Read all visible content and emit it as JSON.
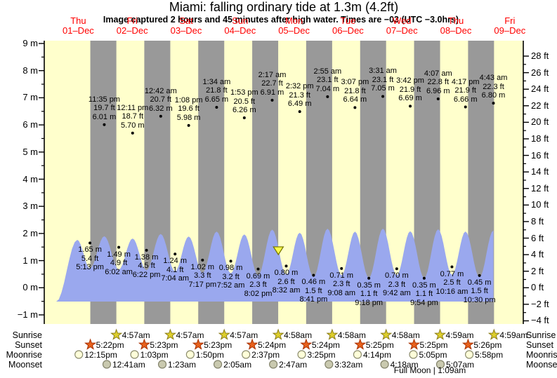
{
  "chart_data": {
    "type": "area",
    "title": "Miami: falling  ordinary tide at 1.3m (4.2ft)",
    "subtitle": "Image captured 2 hours and 45 minutes after high water. Times are −03 (UTC −3.0hrs)",
    "x_axis": {
      "days": [
        {
          "weekday": "Thu",
          "date": "01–Dec"
        },
        {
          "weekday": "Fri",
          "date": "02–Dec"
        },
        {
          "weekday": "Sat",
          "date": "03–Dec"
        },
        {
          "weekday": "Sun",
          "date": "04–Dec"
        },
        {
          "weekday": "Mon",
          "date": "05–Dec"
        },
        {
          "weekday": "Tue",
          "date": "06–Dec"
        },
        {
          "weekday": "Wed",
          "date": "07–Dec"
        },
        {
          "weekday": "Thu",
          "date": "08–Dec"
        },
        {
          "weekday": "Fri",
          "date": "09–Dec"
        }
      ]
    },
    "y_axis_left": {
      "unit": "m",
      "min": -1,
      "max": 9,
      "ticks": [
        {
          "v": 9,
          "label": "9 m"
        },
        {
          "v": 8,
          "label": "8 m"
        },
        {
          "v": 7,
          "label": "7 m"
        },
        {
          "v": 6,
          "label": "6 m"
        },
        {
          "v": 5,
          "label": "5 m"
        },
        {
          "v": 4,
          "label": "4 m"
        },
        {
          "v": 3,
          "label": "3 m"
        },
        {
          "v": 2,
          "label": "2 m"
        },
        {
          "v": 1,
          "label": "1 m"
        },
        {
          "v": 0,
          "label": "0 m"
        },
        {
          "v": -1,
          "label": "−1 m"
        }
      ]
    },
    "y_axis_right": {
      "unit": "ft",
      "min": -4,
      "max": 28,
      "ticks": [
        {
          "v": 28,
          "label": "28 ft"
        },
        {
          "v": 26,
          "label": "26 ft"
        },
        {
          "v": 24,
          "label": "24 ft"
        },
        {
          "v": 22,
          "label": "22 ft"
        },
        {
          "v": 20,
          "label": "20 ft"
        },
        {
          "v": 18,
          "label": "18 ft"
        },
        {
          "v": 16,
          "label": "16 ft"
        },
        {
          "v": 14,
          "label": "14 ft"
        },
        {
          "v": 12,
          "label": "12 ft"
        },
        {
          "v": 10,
          "label": "10 ft"
        },
        {
          "v": 8,
          "label": "8 ft"
        },
        {
          "v": 6,
          "label": "6 ft"
        },
        {
          "v": 4,
          "label": "4 ft"
        },
        {
          "v": 2,
          "label": "2 ft"
        },
        {
          "v": 0,
          "label": "0 ft"
        },
        {
          "v": -2,
          "label": "−2 ft"
        },
        {
          "v": -4,
          "label": "−4 ft"
        }
      ]
    },
    "high_tides": [
      {
        "time": "11:35 pm",
        "height_ft": "19.7 ft",
        "height_m": "6.01 m",
        "t_days": 0.9826,
        "h_m": 6.01
      },
      {
        "time": "12:11 pm",
        "height_ft": "18.7 ft",
        "height_m": "5.70 m",
        "t_days": 1.5076,
        "h_m": 5.7
      },
      {
        "time": "12:42 am",
        "height_ft": "20.7 ft",
        "height_m": "6.32 m",
        "t_days": 2.0292,
        "h_m": 6.32
      },
      {
        "time": "1:08 pm",
        "height_ft": "19.6 ft",
        "height_m": "5.98 m",
        "t_days": 2.5472,
        "h_m": 5.98
      },
      {
        "time": "1:34 am",
        "height_ft": "21.8 ft",
        "height_m": "6.65 m",
        "t_days": 3.0653,
        "h_m": 6.65
      },
      {
        "time": "1:53 pm",
        "height_ft": "20.5 ft",
        "height_m": "6.26 m",
        "t_days": 3.5785,
        "h_m": 6.26
      },
      {
        "time": "2:17 am",
        "height_ft": "22.7 ft",
        "height_m": "6.91 m",
        "t_days": 4.0951,
        "h_m": 6.91
      },
      {
        "time": "2:32 pm",
        "height_ft": "21.3 ft",
        "height_m": "6.49 m",
        "t_days": 4.6056,
        "h_m": 6.49
      },
      {
        "time": "2:55 am",
        "height_ft": "23.1 ft",
        "height_m": "7.04 m",
        "t_days": 5.1215,
        "h_m": 7.04
      },
      {
        "time": "3:07 pm",
        "height_ft": "21.8 ft",
        "height_m": "6.64 m",
        "t_days": 5.6299,
        "h_m": 6.64
      },
      {
        "time": "3:31 am",
        "height_ft": "23.1 ft",
        "height_m": "7.05 m",
        "t_days": 6.1465,
        "h_m": 7.05
      },
      {
        "time": "3:42 pm",
        "height_ft": "21.9 ft",
        "height_m": "6.69 m",
        "t_days": 6.6542,
        "h_m": 6.69
      },
      {
        "time": "4:07 am",
        "height_ft": "22.8 ft",
        "height_m": "6.96 m",
        "t_days": 7.1715,
        "h_m": 6.96
      },
      {
        "time": "4:17 pm",
        "height_ft": "21.9 ft",
        "height_m": "6.66 m",
        "t_days": 7.6785,
        "h_m": 6.66
      },
      {
        "time": "4:43 am",
        "height_ft": "22.3 ft",
        "height_m": "6.80 m",
        "t_days": 8.1965,
        "h_m": 6.8
      }
    ],
    "low_tides": [
      {
        "height_m": "1.65 m",
        "height_ft": "5.4 ft",
        "time": "5:13 pm",
        "t_days": 0.7174,
        "h_m": 1.65
      },
      {
        "height_m": "1.49 m",
        "height_ft": "4.9 ft",
        "time": "6:02 am",
        "t_days": 1.2514,
        "h_m": 1.49
      },
      {
        "height_m": "1.38 m",
        "height_ft": "4.5 ft",
        "time": "6:22 pm",
        "t_days": 1.7653,
        "h_m": 1.38
      },
      {
        "height_m": "1.24 m",
        "height_ft": "4.1 ft",
        "time": "7:04 am",
        "t_days": 2.2944,
        "h_m": 1.24
      },
      {
        "height_m": "1.02 m",
        "height_ft": "3.3 ft",
        "time": "7:17 pm",
        "t_days": 2.8035,
        "h_m": 1.02
      },
      {
        "height_m": "0.98 m",
        "height_ft": "3.2 ft",
        "time": "7:52 am",
        "t_days": 3.3278,
        "h_m": 0.98
      },
      {
        "height_m": "0.69 m",
        "height_ft": "2.3 ft",
        "time": "8:02 pm",
        "t_days": 3.8347,
        "h_m": 0.69
      },
      {
        "height_m": "0.80 m",
        "height_ft": "2.6 ft",
        "time": "8:32 am",
        "t_days": 4.3556,
        "h_m": 0.8
      },
      {
        "height_m": "0.46 m",
        "height_ft": "1.5 ft",
        "time": "8:41 pm",
        "t_days": 4.8618,
        "h_m": 0.46
      },
      {
        "height_m": "0.71 m",
        "height_ft": "2.3 ft",
        "time": "9:08 am",
        "t_days": 5.3806,
        "h_m": 0.71
      },
      {
        "height_m": "0.35 m",
        "height_ft": "1.1 ft",
        "time": "9:18 pm",
        "t_days": 5.8875,
        "h_m": 0.35
      },
      {
        "height_m": "0.70 m",
        "height_ft": "2.3 ft",
        "time": "9:42 am",
        "t_days": 6.4042,
        "h_m": 0.7
      },
      {
        "height_m": "0.35 m",
        "height_ft": "1.1 ft",
        "time": "9:54 pm",
        "t_days": 6.9125,
        "h_m": 0.35
      },
      {
        "height_m": "0.77 m",
        "height_ft": "2.5 ft",
        "time": "10:16 am",
        "t_days": 7.4278,
        "h_m": 0.77
      },
      {
        "height_m": "0.45 m",
        "height_ft": "1.5 ft",
        "time": "10:30 pm",
        "t_days": 7.9375,
        "h_m": 0.45
      }
    ],
    "lead_in_extreme": {
      "t_days": 0.482,
      "h_m": 5.52
    },
    "current_time_marker": {
      "t_days": 4.2096
    }
  },
  "astro": {
    "row_labels": [
      "Sunrise",
      "Sunset",
      "Moonrise",
      "Moonset"
    ],
    "sunrise": [
      {
        "time": "4:57am",
        "t_days": 1.2063
      },
      {
        "time": "4:57am",
        "t_days": 2.2063
      },
      {
        "time": "4:57am",
        "t_days": 3.2063
      },
      {
        "time": "4:58am",
        "t_days": 4.2069
      },
      {
        "time": "4:58am",
        "t_days": 5.2069
      },
      {
        "time": "4:58am",
        "t_days": 6.2069
      },
      {
        "time": "4:59am",
        "t_days": 7.2076
      },
      {
        "time": "4:59am",
        "t_days": 8.2076
      }
    ],
    "sunset": [
      {
        "time": "5:22pm",
        "t_days": 0.7236
      },
      {
        "time": "5:23pm",
        "t_days": 1.7243
      },
      {
        "time": "5:23pm",
        "t_days": 2.7243
      },
      {
        "time": "5:24pm",
        "t_days": 3.725
      },
      {
        "time": "5:24pm",
        "t_days": 4.725
      },
      {
        "time": "5:25pm",
        "t_days": 5.7257
      },
      {
        "time": "5:25pm",
        "t_days": 6.7257
      },
      {
        "time": "5:26pm",
        "t_days": 7.7264
      }
    ],
    "moonrise": [
      {
        "time": "12:15pm",
        "t_days": 0.5104
      },
      {
        "time": "1:03pm",
        "t_days": 1.5438
      },
      {
        "time": "1:50pm",
        "t_days": 2.5764
      },
      {
        "time": "2:37pm",
        "t_days": 3.609
      },
      {
        "time": "3:25pm",
        "t_days": 4.6424
      },
      {
        "time": "4:14pm",
        "t_days": 5.6764
      },
      {
        "time": "5:05pm",
        "t_days": 6.7118
      },
      {
        "time": "5:58pm",
        "t_days": 7.7486
      }
    ],
    "moonset": [
      {
        "time": "12:41am",
        "t_days": 1.0285
      },
      {
        "time": "1:23am",
        "t_days": 2.0576
      },
      {
        "time": "2:05am",
        "t_days": 3.0868
      },
      {
        "time": "2:47am",
        "t_days": 4.116
      },
      {
        "time": "3:32am",
        "t_days": 5.1472
      },
      {
        "time": "4:18am",
        "t_days": 6.1792
      },
      {
        "time": "5:07am",
        "t_days": 7.2132
      }
    ],
    "moon_phase_note": "Full Moon | 1:09am"
  },
  "colors": {
    "day_band": "#ffffcc",
    "night_band": "#999999",
    "water": "#9aa8ee",
    "date_label": "#ff0000",
    "sunrise_star_fill": "#ddce2b",
    "sunrise_star_stroke": "#8b7d1a",
    "sunset_star_fill": "#e8611c",
    "sunset_star_stroke": "#a83000",
    "moonrise_fill": "#ffffd9",
    "moonrise_stroke": "#8c8c6e",
    "moonset_fill": "#c9c9af",
    "moonset_stroke": "#83836b",
    "marker_fill": "#ffff4c",
    "marker_stroke": "#7a7a00"
  }
}
